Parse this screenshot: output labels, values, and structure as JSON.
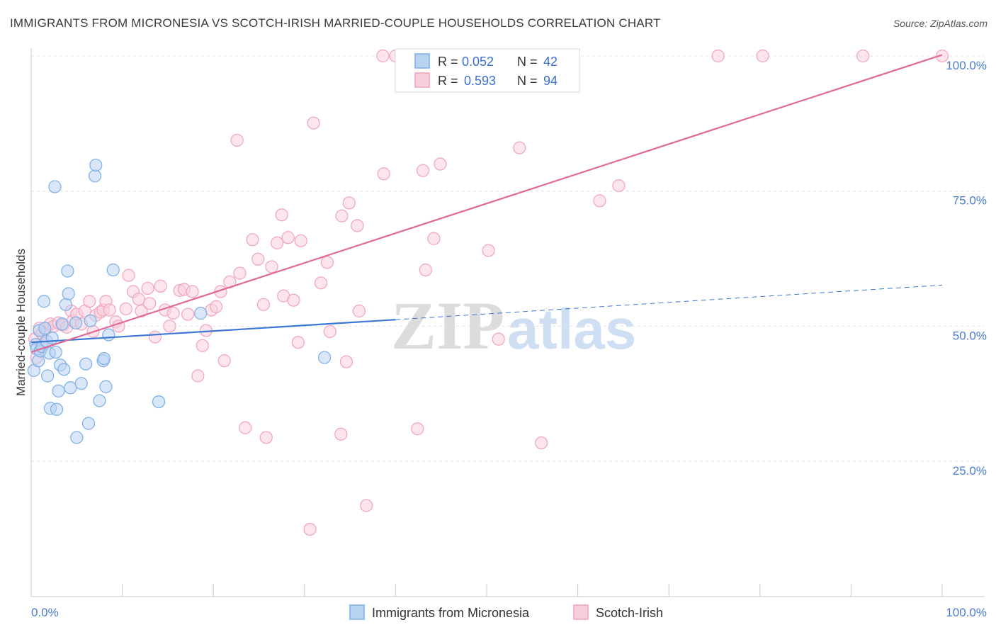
{
  "chart_data": {
    "type": "scatter",
    "title": "IMMIGRANTS FROM MICRONESIA VS SCOTCH-IRISH MARRIED-COUPLE HOUSEHOLDS CORRELATION CHART",
    "source": "Source: ZipAtlas.com",
    "ylabel": "Married-couple Households",
    "xlabel": "",
    "xlim": [
      0,
      100
    ],
    "ylim": [
      0,
      104
    ],
    "x_tick_labels": [
      "0.0%",
      "100.0%"
    ],
    "y_ticks": [
      25,
      50,
      75,
      100
    ],
    "y_tick_labels": [
      "25.0%",
      "50.0%",
      "75.0%",
      "100.0%"
    ],
    "grid": true,
    "watermark": {
      "zip": "ZIP",
      "atlas": "atlas"
    },
    "legend": {
      "position": "top-center",
      "entries": [
        {
          "r_label": "R =",
          "r_value": "0.052",
          "n_label": "N =",
          "n_value": "42"
        },
        {
          "r_label": "R =",
          "r_value": "0.593",
          "n_label": "N =",
          "n_value": "94"
        }
      ]
    },
    "series": [
      {
        "name": "Immigrants from Micronesia",
        "color": "#7aaee8",
        "fill": "#b9d3f3",
        "line_color": "#3a78d4",
        "trend": {
          "x_start": 0,
          "y_start": 47.0,
          "x_solid_end": 40,
          "y_solid_end": 51.2,
          "x_end": 100,
          "y_end": 57.6
        },
        "points": [
          [
            0.3,
            41.8
          ],
          [
            0.5,
            46.6
          ],
          [
            0.6,
            45.8
          ],
          [
            0.8,
            43.6
          ],
          [
            0.9,
            49.2
          ],
          [
            1.0,
            45.4
          ],
          [
            1.2,
            46.2
          ],
          [
            1.4,
            54.6
          ],
          [
            1.5,
            49.6
          ],
          [
            1.7,
            47.2
          ],
          [
            1.8,
            40.8
          ],
          [
            2.0,
            45.0
          ],
          [
            2.1,
            34.8
          ],
          [
            2.3,
            47.8
          ],
          [
            2.6,
            75.8
          ],
          [
            2.7,
            45.2
          ],
          [
            2.8,
            34.6
          ],
          [
            3.0,
            38.0
          ],
          [
            3.2,
            42.8
          ],
          [
            3.4,
            50.4
          ],
          [
            3.6,
            42.0
          ],
          [
            3.8,
            54.0
          ],
          [
            4.0,
            60.2
          ],
          [
            4.1,
            56.0
          ],
          [
            4.3,
            38.6
          ],
          [
            4.9,
            50.6
          ],
          [
            5.0,
            29.4
          ],
          [
            5.5,
            39.4
          ],
          [
            6.0,
            43.0
          ],
          [
            6.3,
            32.0
          ],
          [
            6.5,
            51.0
          ],
          [
            7.0,
            77.8
          ],
          [
            7.1,
            79.8
          ],
          [
            7.5,
            36.2
          ],
          [
            7.9,
            43.6
          ],
          [
            8.0,
            44.0
          ],
          [
            8.2,
            38.8
          ],
          [
            8.5,
            48.4
          ],
          [
            9.0,
            60.4
          ],
          [
            18.6,
            52.4
          ],
          [
            32.2,
            44.2
          ],
          [
            14.0,
            36.0
          ]
        ]
      },
      {
        "name": "Scotch-Irish",
        "color": "#f0a3bb",
        "fill": "#f9cfdc",
        "line_color": "#e06a95",
        "trend": {
          "x_start": 0,
          "y_start": 45.2,
          "x_end": 100,
          "y_end": 100.2
        },
        "points": [
          [
            0.4,
            47.6
          ],
          [
            0.6,
            44.2
          ],
          [
            0.9,
            49.6
          ],
          [
            1.2,
            48.6
          ],
          [
            1.4,
            46.8
          ],
          [
            1.7,
            49.6
          ],
          [
            2.1,
            50.4
          ],
          [
            2.5,
            50.0
          ],
          [
            3.0,
            50.6
          ],
          [
            3.5,
            50.2
          ],
          [
            3.9,
            49.8
          ],
          [
            4.4,
            52.8
          ],
          [
            4.6,
            51.0
          ],
          [
            5.0,
            52.2
          ],
          [
            5.5,
            50.4
          ],
          [
            5.9,
            52.8
          ],
          [
            6.4,
            54.6
          ],
          [
            6.8,
            49.0
          ],
          [
            7.1,
            52.0
          ],
          [
            7.6,
            52.6
          ],
          [
            7.9,
            53.0
          ],
          [
            8.2,
            54.6
          ],
          [
            8.6,
            53.0
          ],
          [
            9.3,
            50.8
          ],
          [
            9.6,
            50.0
          ],
          [
            10.4,
            53.2
          ],
          [
            10.7,
            59.4
          ],
          [
            11.2,
            56.4
          ],
          [
            11.8,
            55.0
          ],
          [
            12.1,
            52.8
          ],
          [
            12.8,
            57.0
          ],
          [
            13.0,
            54.2
          ],
          [
            13.6,
            48.0
          ],
          [
            14.2,
            57.4
          ],
          [
            14.7,
            53.0
          ],
          [
            15.2,
            50.0
          ],
          [
            15.6,
            52.4
          ],
          [
            16.3,
            56.6
          ],
          [
            16.8,
            56.8
          ],
          [
            17.2,
            52.2
          ],
          [
            17.7,
            56.4
          ],
          [
            18.3,
            40.8
          ],
          [
            18.8,
            46.4
          ],
          [
            19.2,
            49.2
          ],
          [
            19.8,
            53.0
          ],
          [
            20.3,
            53.6
          ],
          [
            20.8,
            56.4
          ],
          [
            21.2,
            43.6
          ],
          [
            21.8,
            58.2
          ],
          [
            22.6,
            84.4
          ],
          [
            22.9,
            59.8
          ],
          [
            23.5,
            31.2
          ],
          [
            24.3,
            66.0
          ],
          [
            24.9,
            62.4
          ],
          [
            25.5,
            54.0
          ],
          [
            25.8,
            29.4
          ],
          [
            26.4,
            61.0
          ],
          [
            27.0,
            65.4
          ],
          [
            27.5,
            70.6
          ],
          [
            27.7,
            55.6
          ],
          [
            28.2,
            66.4
          ],
          [
            28.8,
            54.8
          ],
          [
            29.3,
            47.0
          ],
          [
            29.6,
            65.8
          ],
          [
            31.0,
            87.6
          ],
          [
            31.8,
            58.0
          ],
          [
            32.5,
            61.8
          ],
          [
            32.8,
            49.0
          ],
          [
            34.0,
            30.0
          ],
          [
            34.1,
            70.4
          ],
          [
            34.6,
            43.4
          ],
          [
            34.9,
            72.8
          ],
          [
            35.8,
            68.6
          ],
          [
            36.0,
            52.8
          ],
          [
            36.8,
            16.8
          ],
          [
            38.7,
            78.2
          ],
          [
            30.6,
            12.4
          ],
          [
            42.4,
            31.0
          ],
          [
            43.0,
            78.8
          ],
          [
            43.3,
            60.4
          ],
          [
            44.2,
            66.2
          ],
          [
            44.9,
            80.0
          ],
          [
            50.2,
            64.0
          ],
          [
            51.3,
            47.6
          ],
          [
            53.6,
            83.0
          ],
          [
            56.0,
            28.4
          ],
          [
            62.4,
            73.2
          ],
          [
            64.5,
            76.0
          ],
          [
            38.6,
            100.0
          ],
          [
            40.0,
            100.0
          ],
          [
            75.4,
            100.0
          ],
          [
            80.3,
            100.0
          ],
          [
            91.3,
            100.0
          ],
          [
            100.0,
            100.0
          ]
        ]
      }
    ]
  }
}
